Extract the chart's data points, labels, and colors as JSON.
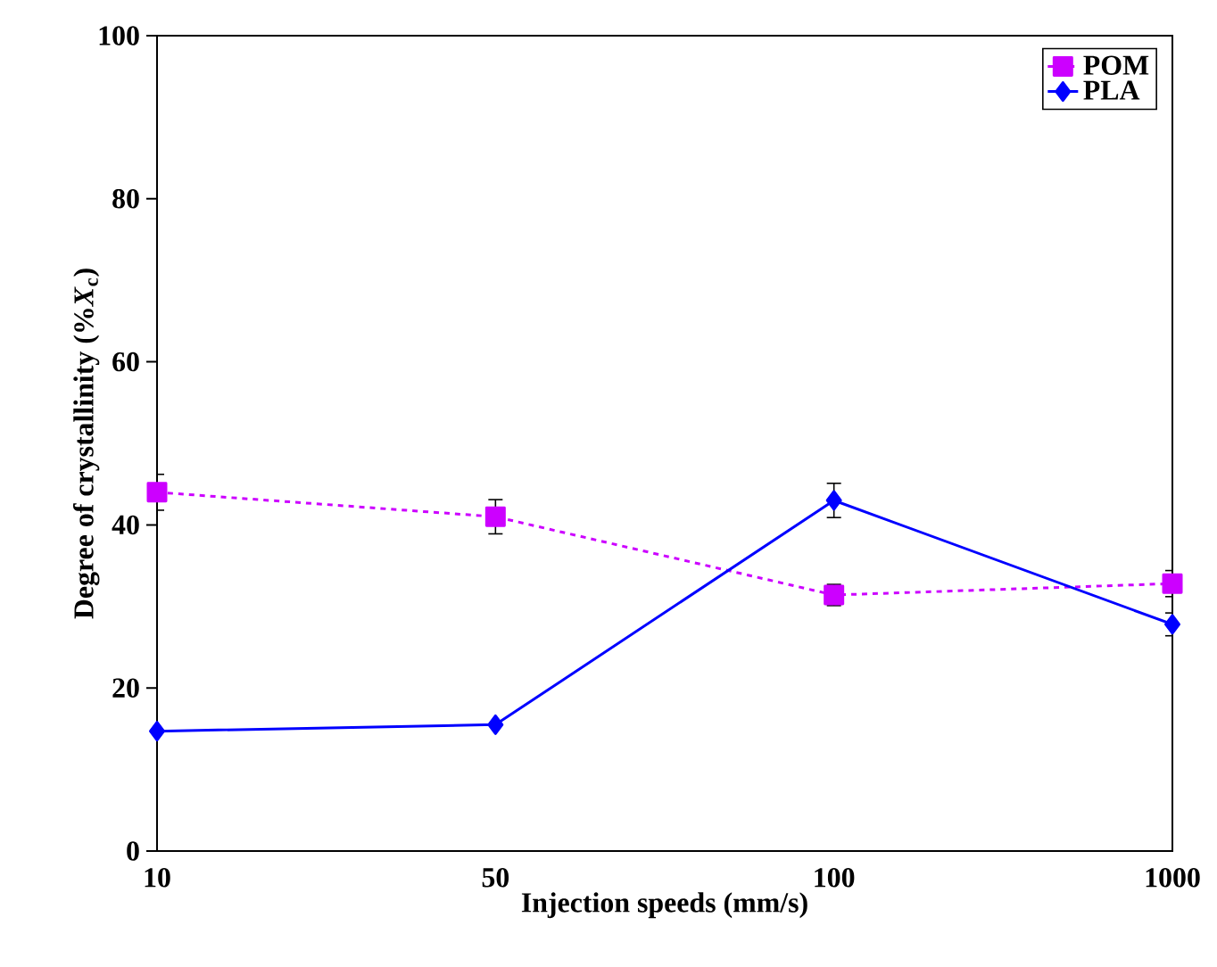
{
  "chart_data": {
    "type": "line",
    "xlabel": "Injection speeds (mm/s)",
    "ylabel": "Degree of crystallinity (%*X*$_{c}$)",
    "categories": [
      "10",
      "50",
      "100",
      "1000"
    ],
    "series": [
      {
        "name": "POM",
        "color": "#cc00ff",
        "marker": "square",
        "line_style": "dashed",
        "values": [
          44.0,
          41.0,
          31.4,
          32.8
        ],
        "errors": [
          2.2,
          2.1,
          1.3,
          1.6
        ]
      },
      {
        "name": "PLA",
        "color": "#0000ff",
        "marker": "diamond",
        "line_style": "solid",
        "values": [
          14.7,
          15.5,
          43.0,
          27.8
        ],
        "errors": [
          null,
          null,
          2.1,
          1.4
        ]
      }
    ],
    "ylim": [
      0,
      100
    ],
    "yticks": [
      0,
      20,
      40,
      60,
      80,
      100
    ],
    "grid": false,
    "legend": "top right"
  }
}
